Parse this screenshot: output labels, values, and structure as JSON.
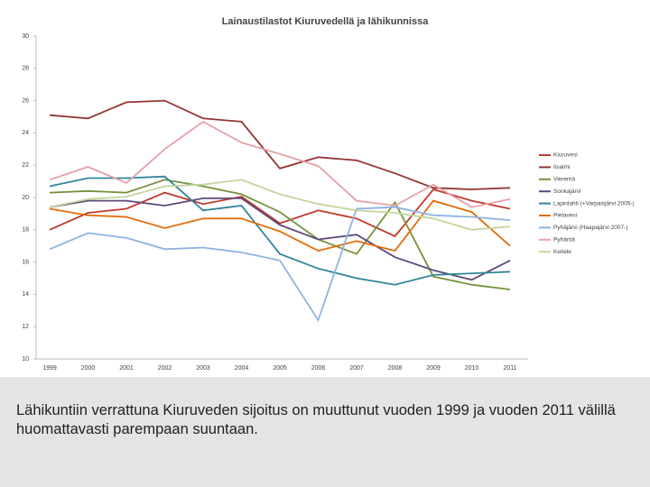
{
  "chart_data": {
    "type": "line",
    "title": "Lainaustilastot Kiuruvedellä ja lähikunnissa",
    "categories": [
      "1999",
      "2000",
      "2001",
      "2002",
      "2003",
      "2004",
      "2005",
      "2006",
      "2007",
      "2008",
      "2009",
      "2010",
      "2011"
    ],
    "ylim": [
      10,
      30
    ],
    "yticks": [
      10,
      12,
      14,
      16,
      18,
      20,
      22,
      24,
      26,
      28,
      30
    ],
    "grid": false,
    "legend": "right",
    "series": [
      {
        "name": "Kiuruvesi",
        "color": "#c0392b",
        "values": [
          18.0,
          19.05,
          19.3,
          20.3,
          19.6,
          20.05,
          18.4,
          19.2,
          18.7,
          17.6,
          20.5,
          19.8,
          19.3
        ]
      },
      {
        "name": "Iisalmi",
        "color": "#943634",
        "values": [
          25.1,
          24.9,
          25.9,
          26.0,
          24.9,
          24.7,
          21.8,
          22.5,
          22.3,
          21.5,
          20.6,
          20.5,
          20.6
        ]
      },
      {
        "name": "Vieremä",
        "color": "#76923c",
        "values": [
          20.3,
          20.4,
          20.3,
          21.1,
          20.7,
          20.2,
          19.1,
          17.4,
          16.5,
          19.7,
          15.1,
          14.6,
          14.3
        ]
      },
      {
        "name": "Sonkajärvi",
        "color": "#5f497a",
        "values": [
          19.4,
          19.8,
          19.8,
          19.5,
          19.95,
          19.95,
          18.3,
          17.4,
          17.7,
          16.3,
          15.5,
          14.9,
          16.1
        ]
      },
      {
        "name": "Lapinlahti (+Varpaisjärvi 2005-)",
        "color": "#31859c",
        "values": [
          20.7,
          21.2,
          21.2,
          21.3,
          19.2,
          19.5,
          16.5,
          15.6,
          15.0,
          14.6,
          15.2,
          15.3,
          15.4
        ]
      },
      {
        "name": "Pielavesi",
        "color": "#e36c09",
        "values": [
          19.3,
          18.9,
          18.8,
          18.1,
          18.7,
          18.7,
          17.9,
          16.7,
          17.3,
          16.7,
          19.8,
          19.1,
          17.0
        ]
      },
      {
        "name": "Pyhäjärvi (Haapajärvi 2007-)",
        "color": "#8db3e2",
        "values": [
          16.8,
          17.8,
          17.5,
          16.8,
          16.9,
          16.6,
          16.1,
          12.4,
          19.3,
          19.4,
          18.9,
          18.8,
          18.6
        ]
      },
      {
        "name": "Pyhäntä",
        "color": "#e6a0a8",
        "values": [
          21.1,
          21.9,
          20.9,
          23.0,
          24.7,
          23.4,
          22.7,
          21.95,
          19.8,
          19.5,
          20.8,
          19.4,
          19.9
        ]
      },
      {
        "name": "Keitele",
        "color": "#c3d69b",
        "values": [
          19.4,
          19.9,
          20.05,
          20.7,
          20.8,
          21.1,
          20.2,
          19.6,
          19.2,
          19.05,
          18.7,
          18.0,
          18.2
        ]
      }
    ]
  },
  "caption": "Lähikuntiin verrattuna Kiuruveden sijoitus on muuttunut vuoden 1999 ja vuoden 2011 välillä huomattavasti parempaan suuntaan."
}
